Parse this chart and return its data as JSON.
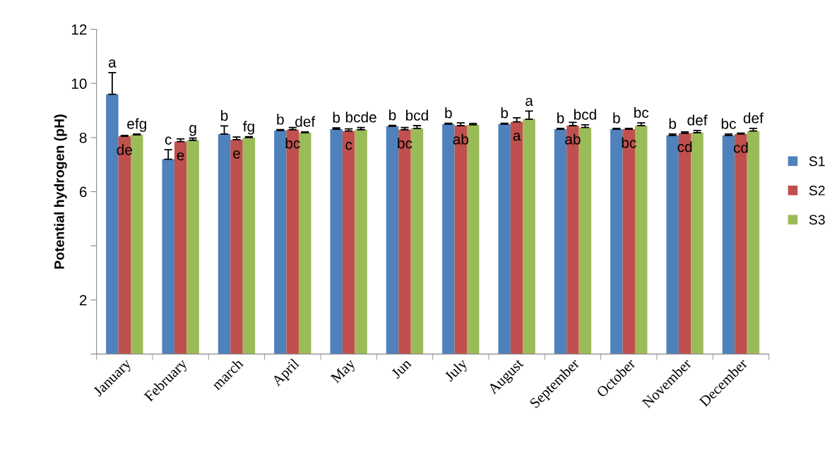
{
  "chart_data": {
    "type": "bar",
    "ylabel": "Potential hydrogen (pH)",
    "categories": [
      "January",
      "February",
      "march",
      "April",
      "May",
      "Jun",
      "July",
      "August",
      "September",
      "October",
      "November",
      "December"
    ],
    "series": [
      {
        "name": "S1",
        "color": "#4f81bd",
        "values": [
          9.6,
          7.2,
          8.13,
          8.26,
          8.31,
          8.42,
          8.5,
          8.5,
          8.31,
          8.31,
          8.08,
          8.08
        ],
        "errors": [
          [
            9.6,
            10.4
          ],
          [
            7.2,
            7.55
          ],
          [
            8.13,
            8.43
          ],
          [
            8.26,
            8.29
          ],
          [
            8.31,
            8.36
          ],
          [
            8.42,
            8.45
          ],
          [
            8.5,
            8.53
          ],
          [
            8.5,
            8.53
          ],
          [
            8.31,
            8.34
          ],
          [
            8.31,
            8.34
          ],
          [
            8.08,
            8.13
          ],
          [
            8.08,
            8.13
          ]
        ],
        "value_labels": [
          "a",
          "c",
          "b",
          "b",
          "b",
          "b",
          "b",
          "b",
          "b",
          "b",
          "b",
          "bc"
        ]
      },
      {
        "name": "S2",
        "color": "#c0504d",
        "values": [
          8.05,
          7.85,
          7.92,
          8.29,
          8.24,
          8.29,
          8.44,
          8.58,
          8.44,
          8.31,
          8.16,
          8.13
        ],
        "errors": [
          [
            8.05,
            8.08
          ],
          [
            7.85,
            7.95
          ],
          [
            7.92,
            8.02
          ],
          [
            8.29,
            8.37
          ],
          [
            8.24,
            8.32
          ],
          [
            8.29,
            8.37
          ],
          [
            8.44,
            8.54
          ],
          [
            8.58,
            8.73
          ],
          [
            8.44,
            8.56
          ],
          [
            8.31,
            8.34
          ],
          [
            8.16,
            8.21
          ],
          [
            8.13,
            8.16
          ]
        ],
        "value_labels": [
          "de",
          "e",
          "e",
          "bc",
          "c",
          "bc",
          "ab",
          "a",
          "ab",
          "bc",
          "cd",
          "cd"
        ]
      },
      {
        "name": "S3",
        "color": "#9bbb59",
        "values": [
          8.1,
          7.9,
          8.0,
          8.18,
          8.29,
          8.34,
          8.47,
          8.68,
          8.37,
          8.44,
          8.18,
          8.24
        ],
        "errors": [
          [
            8.1,
            8.13
          ],
          [
            7.9,
            7.98
          ],
          [
            8.0,
            8.03
          ],
          [
            8.18,
            8.21
          ],
          [
            8.29,
            8.37
          ],
          [
            8.34,
            8.44
          ],
          [
            8.47,
            8.52
          ],
          [
            8.68,
            8.98
          ],
          [
            8.37,
            8.47
          ],
          [
            8.44,
            8.54
          ],
          [
            8.18,
            8.26
          ],
          [
            8.24,
            8.34
          ]
        ],
        "value_labels": [
          "efg",
          "g",
          "fg",
          "def",
          "bcde",
          "bcd",
          null,
          "a",
          "bcd",
          "bc",
          "def",
          "def"
        ]
      }
    ],
    "ylim": [
      0,
      12
    ],
    "yticks": [
      {
        "value": 0,
        "label": null
      },
      2,
      {
        "value": 4,
        "label": null
      },
      6,
      8,
      10,
      12
    ],
    "grid": false,
    "legend": "right"
  }
}
